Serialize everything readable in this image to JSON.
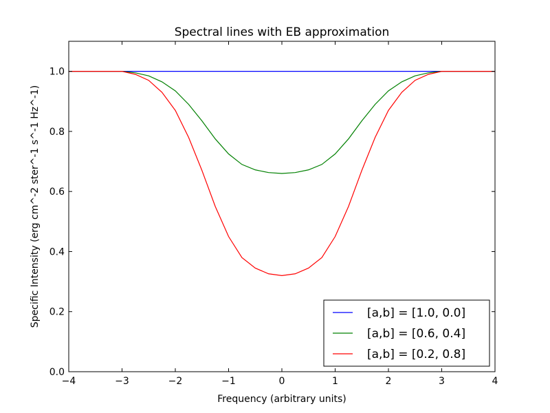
{
  "chart_data": {
    "type": "line",
    "title": "Spectral lines with EB approximation",
    "xlabel": "Frequency (arbitrary units)",
    "ylabel": "Specific Intensity (erg cm^-2 ster^-1 s^-1 Hz^-1)",
    "xlim": [
      -4,
      4
    ],
    "ylim": [
      0.0,
      1.1
    ],
    "x_ticks": [
      -4,
      -3,
      -2,
      -1,
      0,
      1,
      2,
      3,
      4
    ],
    "x_tick_labels": [
      "−4",
      "−3",
      "−2",
      "−1",
      "0",
      "1",
      "2",
      "3",
      "4"
    ],
    "y_ticks": [
      0.0,
      0.2,
      0.4,
      0.6,
      0.8,
      1.0
    ],
    "y_tick_labels": [
      "0.0",
      "0.2",
      "0.4",
      "0.6",
      "0.8",
      "1.0"
    ],
    "grid": false,
    "legend_position": "lower-right",
    "x": [
      -4.0,
      -3.0,
      -2.75,
      -2.5,
      -2.25,
      -2.0,
      -1.75,
      -1.5,
      -1.25,
      -1.0,
      -0.75,
      -0.5,
      -0.25,
      0.0,
      0.25,
      0.5,
      0.75,
      1.0,
      1.25,
      1.5,
      1.75,
      2.0,
      2.25,
      2.5,
      2.75,
      3.0,
      4.0
    ],
    "series": [
      {
        "name": "[a,b] = [1.0, 0.0]",
        "color": "#0000ff",
        "values": [
          1.0,
          1.0,
          1.0,
          1.0,
          1.0,
          1.0,
          1.0,
          1.0,
          1.0,
          1.0,
          1.0,
          1.0,
          1.0,
          1.0,
          1.0,
          1.0,
          1.0,
          1.0,
          1.0,
          1.0,
          1.0,
          1.0,
          1.0,
          1.0,
          1.0,
          1.0,
          1.0
        ]
      },
      {
        "name": "[a,b] = [0.6, 0.4]",
        "color": "#008000",
        "values": [
          1.0,
          1.0,
          0.995,
          0.985,
          0.965,
          0.935,
          0.89,
          0.835,
          0.775,
          0.725,
          0.69,
          0.672,
          0.663,
          0.66,
          0.663,
          0.672,
          0.69,
          0.725,
          0.775,
          0.835,
          0.89,
          0.935,
          0.965,
          0.985,
          0.995,
          1.0,
          1.0
        ]
      },
      {
        "name": "[a,b] = [0.2, 0.8]",
        "color": "#ff0000",
        "values": [
          1.0,
          1.0,
          0.99,
          0.97,
          0.93,
          0.87,
          0.78,
          0.67,
          0.55,
          0.45,
          0.38,
          0.345,
          0.326,
          0.32,
          0.326,
          0.345,
          0.38,
          0.45,
          0.55,
          0.67,
          0.78,
          0.87,
          0.93,
          0.97,
          0.99,
          1.0,
          1.0
        ]
      }
    ]
  }
}
